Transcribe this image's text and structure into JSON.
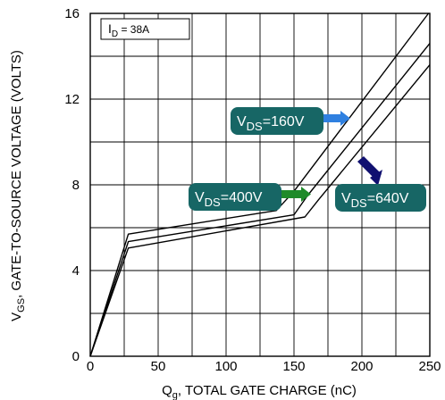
{
  "chart_data": {
    "type": "line",
    "xlabel": {
      "main": "Q",
      "sub": "g",
      "rest": ", TOTAL GATE CHARGE (nC)"
    },
    "ylabel": {
      "main": "V",
      "sub": "GS",
      "rest": ", GATE-TO-SOURCE VOLTAGE (VOLTS)"
    },
    "xlim": [
      0,
      250
    ],
    "ylim": [
      0,
      16
    ],
    "xticks": [
      0,
      50,
      100,
      150,
      200,
      250
    ],
    "yticks": [
      0,
      4,
      8,
      12,
      16
    ],
    "grid": true,
    "conditions": {
      "main": "I",
      "sub": "D",
      "rest": " = 38A"
    },
    "series": [
      {
        "name": "VDS=160V",
        "label_main": "V",
        "label_sub": "DS",
        "label_rest": "=160V",
        "arrow_color": "#2f80e0",
        "points": [
          [
            0,
            0
          ],
          [
            28,
            5.7
          ],
          [
            137,
            6.8
          ],
          [
            150,
            7.7
          ],
          [
            249,
            16
          ]
        ]
      },
      {
        "name": "VDS=400V",
        "label_main": "V",
        "label_sub": "DS",
        "label_rest": "=400V",
        "arrow_color": "#1f8a2a",
        "points": [
          [
            0,
            0
          ],
          [
            28,
            5.35
          ],
          [
            150,
            6.6
          ],
          [
            160,
            7.5
          ],
          [
            250,
            14.6
          ]
        ]
      },
      {
        "name": "VDS=640V",
        "label_main": "V",
        "label_sub": "DS",
        "label_rest": "=640V",
        "arrow_color": "#101070",
        "points": [
          [
            0,
            0
          ],
          [
            28,
            5.05
          ],
          [
            158,
            6.5
          ],
          [
            168,
            7.3
          ],
          [
            250,
            13.6
          ]
        ]
      }
    ]
  }
}
